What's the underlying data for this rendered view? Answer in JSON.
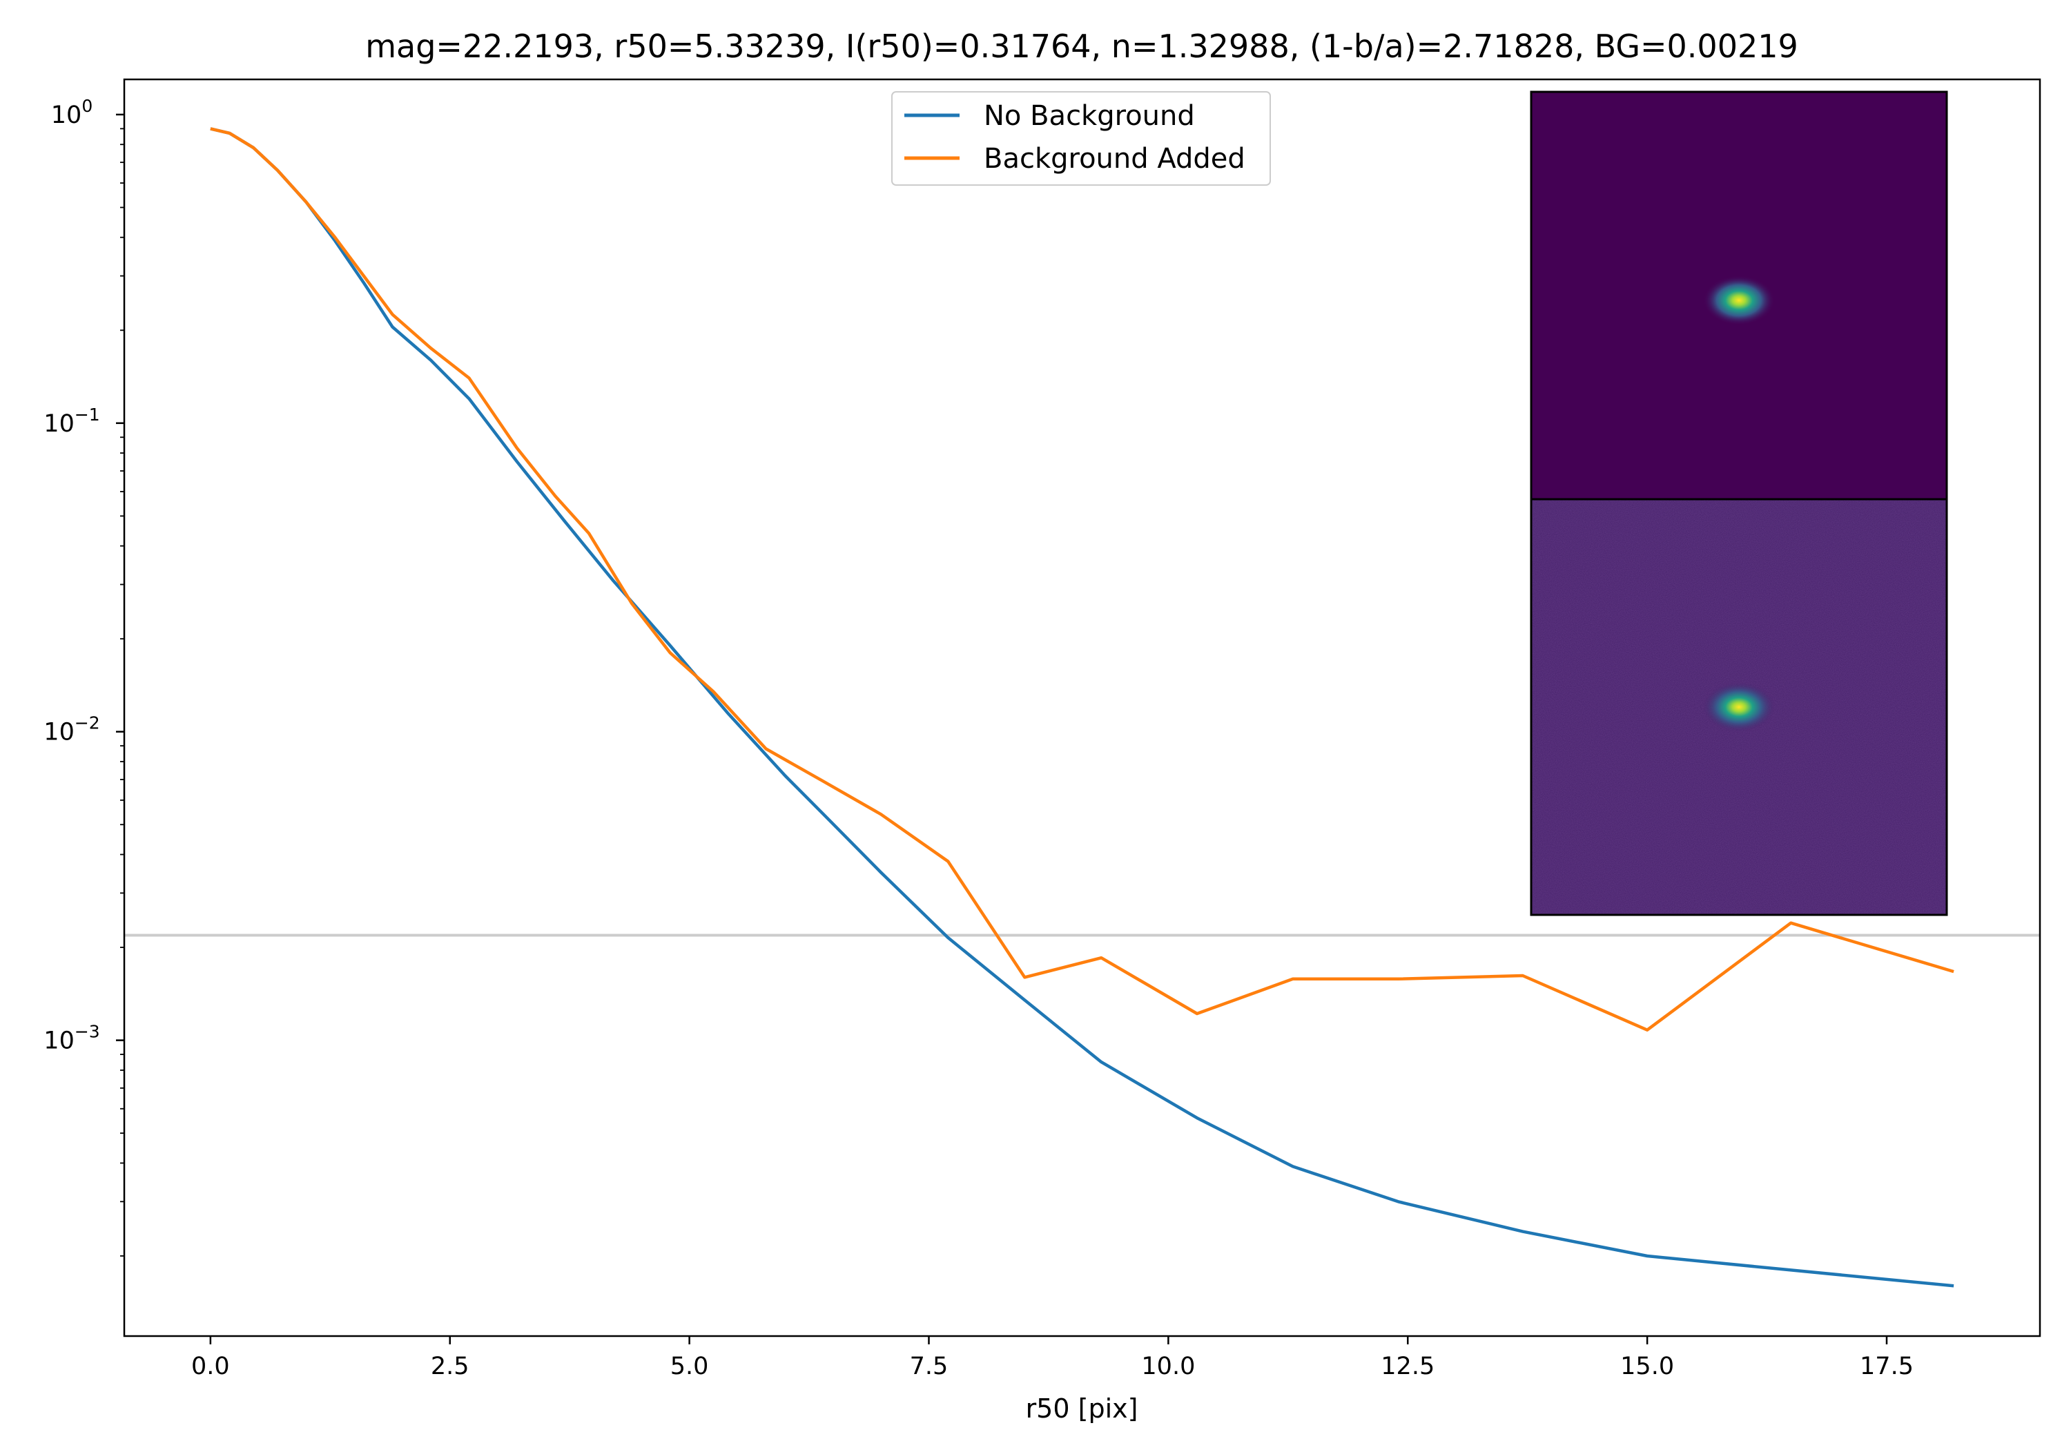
{
  "chart_data": {
    "type": "line",
    "title": "mag=22.2193, r50=5.33239, I(r50)=0.31764, n=1.32988, (1-b/a)=2.71828, BG=0.00219",
    "xlabel": "r50 [pix]",
    "ylabel": "",
    "xlim": [
      -0.9,
      19.1
    ],
    "ylim": [
      0.00011,
      1.3
    ],
    "yscale": "log",
    "grid": false,
    "legend_position": "top-center",
    "x_ticks": [
      0.0,
      2.5,
      5.0,
      7.5,
      10.0,
      12.5,
      15.0,
      17.5
    ],
    "x_tick_labels": [
      "0.0",
      "2.5",
      "5.0",
      "7.5",
      "10.0",
      "12.5",
      "15.0",
      "17.5"
    ],
    "y_ticks": [
      {
        "value": 1,
        "base": "10",
        "exp": "0"
      },
      {
        "value": 0.1,
        "base": "10",
        "exp": "−1"
      },
      {
        "value": 0.01,
        "base": "10",
        "exp": "−2"
      },
      {
        "value": 0.001,
        "base": "10",
        "exp": "−3"
      }
    ],
    "hline": {
      "y": 0.00219,
      "color": "#cccccc"
    },
    "series": [
      {
        "name": "No Background",
        "color": "#1f77b4",
        "x": [
          0.0,
          0.2,
          0.45,
          0.7,
          1.0,
          1.3,
          1.6,
          1.9,
          2.3,
          2.7,
          3.2,
          3.7,
          4.2,
          4.8,
          5.4,
          6.0,
          6.4,
          7.0,
          7.7,
          8.5,
          9.3,
          10.3,
          11.3,
          12.4,
          13.7,
          15.0,
          16.5,
          18.2
        ],
        "y": [
          0.9,
          0.87,
          0.78,
          0.66,
          0.52,
          0.39,
          0.285,
          0.205,
          0.16,
          0.12,
          0.075,
          0.048,
          0.031,
          0.019,
          0.0115,
          0.0072,
          0.0054,
          0.0035,
          0.00215,
          0.00135,
          0.00085,
          0.00056,
          0.00039,
          0.0003,
          0.00024,
          0.0002,
          0.00018,
          0.00016
        ]
      },
      {
        "name": "Background Added",
        "color": "#ff7f0e",
        "x": [
          0.0,
          0.2,
          0.45,
          0.7,
          1.0,
          1.3,
          1.6,
          1.9,
          2.3,
          2.7,
          3.2,
          3.6,
          3.95,
          4.4,
          4.8,
          5.25,
          5.8,
          6.4,
          7.0,
          7.7,
          8.5,
          9.3,
          10.3,
          11.3,
          12.4,
          13.7,
          15.0,
          16.5,
          18.2
        ],
        "y": [
          0.9,
          0.87,
          0.78,
          0.66,
          0.52,
          0.4,
          0.3,
          0.225,
          0.175,
          0.14,
          0.083,
          0.058,
          0.044,
          0.026,
          0.018,
          0.0135,
          0.0088,
          0.0069,
          0.0054,
          0.0038,
          0.0016,
          0.00185,
          0.00122,
          0.00158,
          0.00158,
          0.00162,
          0.00108,
          0.0024,
          0.00167
        ]
      }
    ],
    "inset_images": [
      {
        "name": "model-image-no-background",
        "background": "#440154",
        "spot": "#fde725"
      },
      {
        "name": "model-image-background-added",
        "background": "#46216b",
        "spot": "#fde725"
      }
    ]
  }
}
